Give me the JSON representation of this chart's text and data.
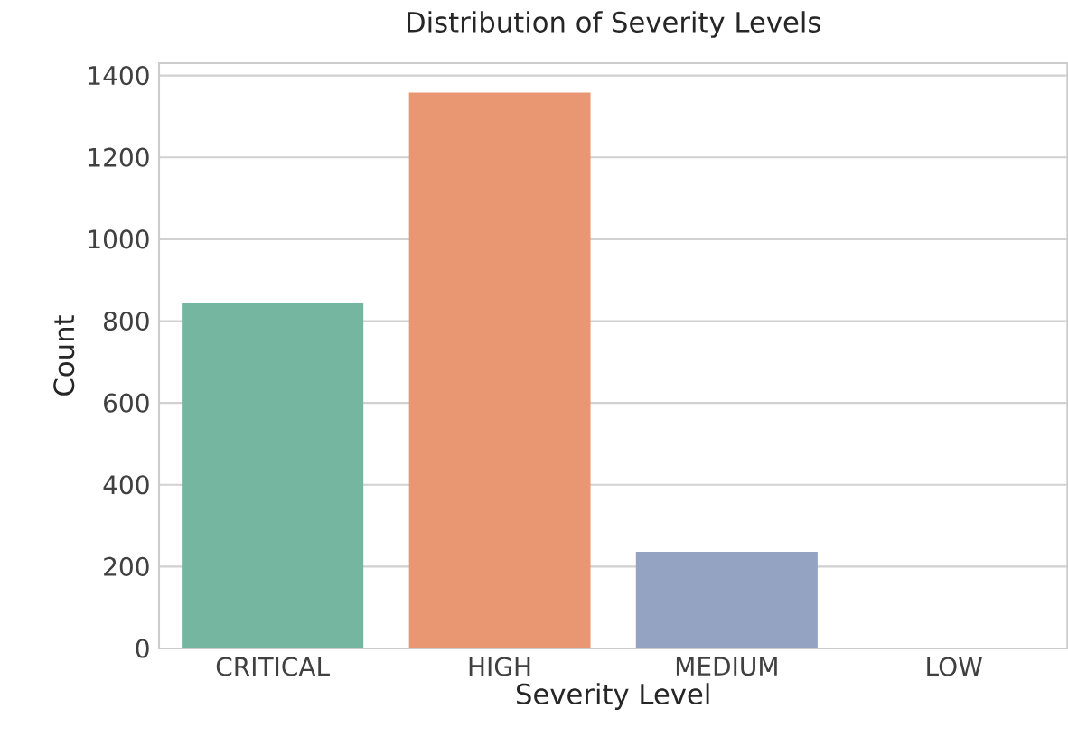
{
  "chart_data": {
    "type": "bar",
    "title": "Distribution of Severity Levels",
    "xlabel": "Severity Level",
    "ylabel": "Count",
    "categories": [
      "CRITICAL",
      "HIGH",
      "MEDIUM",
      "LOW"
    ],
    "values": [
      845,
      1358,
      236,
      0
    ],
    "colors": [
      "#74b6a0",
      "#e99673",
      "#95a3c3",
      "#e08fbf"
    ],
    "ylim": [
      0,
      1430
    ],
    "yticks": [
      0,
      200,
      400,
      600,
      800,
      1000,
      1200,
      1400
    ],
    "grid": "y"
  }
}
